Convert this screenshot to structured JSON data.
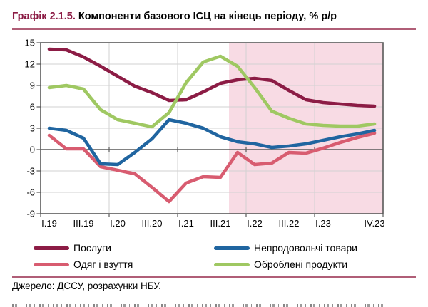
{
  "title": {
    "prefix": "Графік 2.1.5.",
    "rest": " Компоненти базового ІСЦ на кінець періоду, % р/р"
  },
  "source": "Джерело: ДССУ, розрахунки НБУ.",
  "colors": {
    "title_accent": "#8C1C45",
    "rule": "#B05E77",
    "frame": "#595959",
    "zero_line": "#595959",
    "gridline": "#D2D2D2",
    "shade": "#F8DBE4",
    "tick_text": "#000000"
  },
  "chart_data": {
    "type": "line",
    "title": "Компоненти базового ІСЦ на кінець періоду, % р/р",
    "x": [
      "I.19",
      "II.19",
      "III.19",
      "IV.19",
      "I.20",
      "II.20",
      "III.20",
      "IV.20",
      "I.21",
      "II.21",
      "III.21",
      "IV.21",
      "I.22",
      "II.22",
      "III.22",
      "IV.22",
      "I.23",
      "II.23",
      "III.23",
      "IV.23"
    ],
    "x_tick_indices": [
      0,
      2,
      4,
      6,
      8,
      10,
      12,
      14,
      16,
      19
    ],
    "x_tick_labels": [
      "I.19",
      "III.19",
      "I.20",
      "III.20",
      "I.21",
      "III.21",
      "I.22",
      "III.22",
      "I.23",
      "IV.23"
    ],
    "ylim": [
      -9,
      15
    ],
    "y_ticks": [
      15,
      12,
      9,
      6,
      3,
      0,
      -3,
      -6,
      -9
    ],
    "grid": true,
    "legend_position": "bottom",
    "shaded_region": {
      "from_label": "IV.21",
      "to_label": "IV.23",
      "color": "#F8DBE4"
    },
    "series": [
      {
        "name": "Послуги",
        "slug": "services",
        "color": "#8C1C45",
        "values": [
          14.1,
          14.0,
          13.0,
          11.7,
          10.3,
          8.9,
          8.0,
          6.9,
          7.0,
          8.1,
          9.3,
          9.8,
          10.0,
          9.7,
          8.3,
          7.0,
          6.6,
          6.4,
          6.2,
          6.1
        ]
      },
      {
        "name": "Непродовольчі товари",
        "slug": "non-food-goods",
        "color": "#2065A0",
        "values": [
          3.0,
          2.7,
          1.6,
          -2.0,
          -2.1,
          -0.4,
          1.5,
          4.2,
          3.7,
          3.0,
          1.8,
          1.1,
          0.8,
          0.3,
          0.5,
          0.8,
          1.3,
          1.8,
          2.2,
          2.7
        ]
      },
      {
        "name": "Одяг і взуття",
        "slug": "clothing-and-footwear",
        "color": "#D85C70",
        "values": [
          2.0,
          0.1,
          0.1,
          -2.4,
          -2.9,
          -3.4,
          -5.3,
          -7.3,
          -4.7,
          -3.8,
          -3.9,
          -0.4,
          -2.1,
          -1.9,
          -0.4,
          -0.5,
          0.2,
          1.0,
          1.7,
          2.3
        ]
      },
      {
        "name": "Оброблені продукти",
        "slug": "processed-foods",
        "color": "#9FC862",
        "values": [
          8.7,
          9.0,
          8.5,
          5.6,
          4.2,
          3.7,
          3.2,
          5.2,
          9.4,
          12.3,
          13.1,
          11.7,
          8.7,
          5.4,
          4.4,
          3.6,
          3.4,
          3.3,
          3.3,
          3.6
        ]
      }
    ]
  },
  "legend": {
    "rows": [
      [
        "Послуги",
        "Непродовольчі товари"
      ],
      [
        "Одяг і взуття",
        "Оброблені продукти"
      ]
    ]
  }
}
